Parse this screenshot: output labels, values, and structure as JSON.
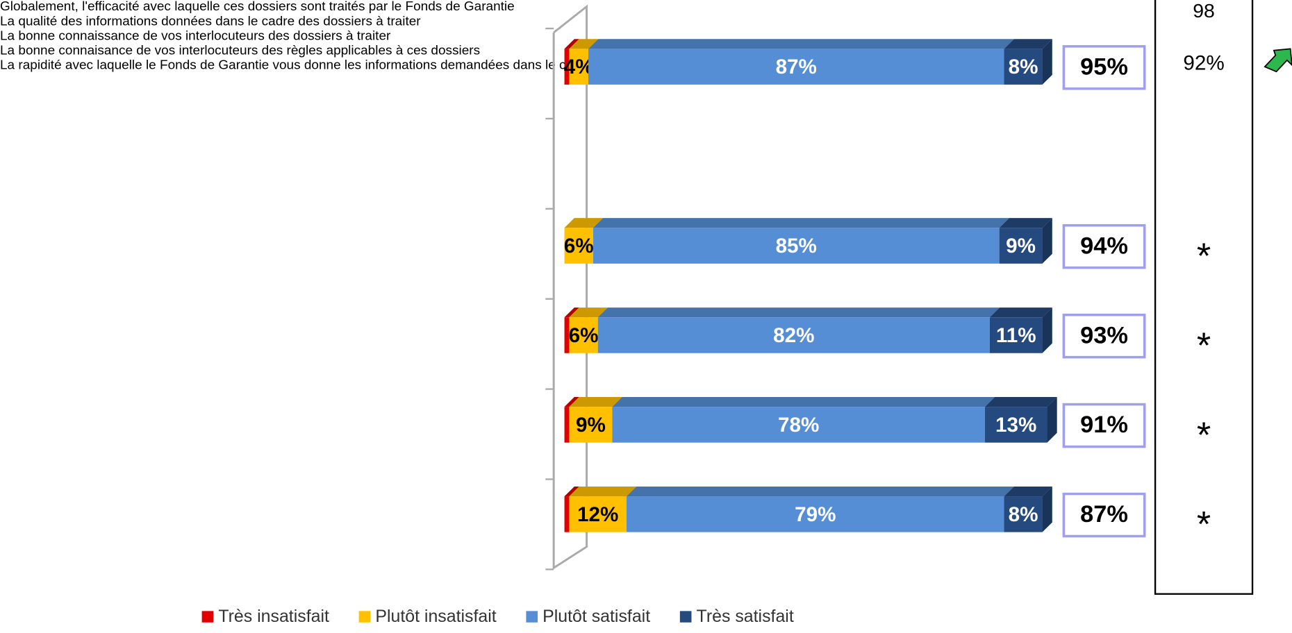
{
  "chart_data": {
    "type": "stacked_bar_horizontal",
    "categories": [
      "Globalement, l'efficacité avec laquelle ces\ndossiers sont traités par le Fonds de Garantie",
      null,
      "La qualité des informations données dans le\ncadre des dossiers à traiter",
      "La bonne connaissance de vos interlocuteurs des\ndossiers à traiter",
      "La bonne connaisance de vos interlocuteurs des\nrègles applicables à ces dossiers",
      "La rapidité avec laquelle le Fonds de Garantie\nvous donne les informations demandées dans le\ncadre des dossiers à traiter"
    ],
    "series": [
      {
        "name": "Très insatisfait",
        "color": "#e00000",
        "values": [
          1,
          null,
          0,
          1,
          1,
          1
        ]
      },
      {
        "name": "Plutôt insatisfait",
        "color": "#ffc000",
        "values": [
          4,
          null,
          6,
          6,
          9,
          12
        ],
        "value_labels": [
          "4%",
          null,
          "6%",
          "6%",
          "9%",
          "12%"
        ]
      },
      {
        "name": "Plutôt satisfait",
        "color": "#558ed5",
        "values": [
          87,
          null,
          85,
          82,
          78,
          79
        ],
        "value_labels": [
          "87%",
          null,
          "85%",
          "82%",
          "78%",
          "79%"
        ]
      },
      {
        "name": "Très satisfait",
        "color": "#254a7f",
        "values": [
          8,
          null,
          9,
          11,
          13,
          8
        ],
        "value_labels": [
          "8%",
          null,
          "9%",
          "11%",
          "13%",
          "8%"
        ]
      }
    ],
    "xlim": [
      0,
      100
    ],
    "totals": {
      "values": [
        95,
        null,
        94,
        93,
        91,
        87
      ],
      "value_labels": [
        "95%",
        null,
        "94%",
        "93%",
        "91%",
        "87%"
      ]
    },
    "comparison": {
      "header": "98",
      "values": [
        "92%",
        null,
        "*",
        "*",
        "*",
        "*"
      ]
    },
    "legend": "bottom"
  }
}
